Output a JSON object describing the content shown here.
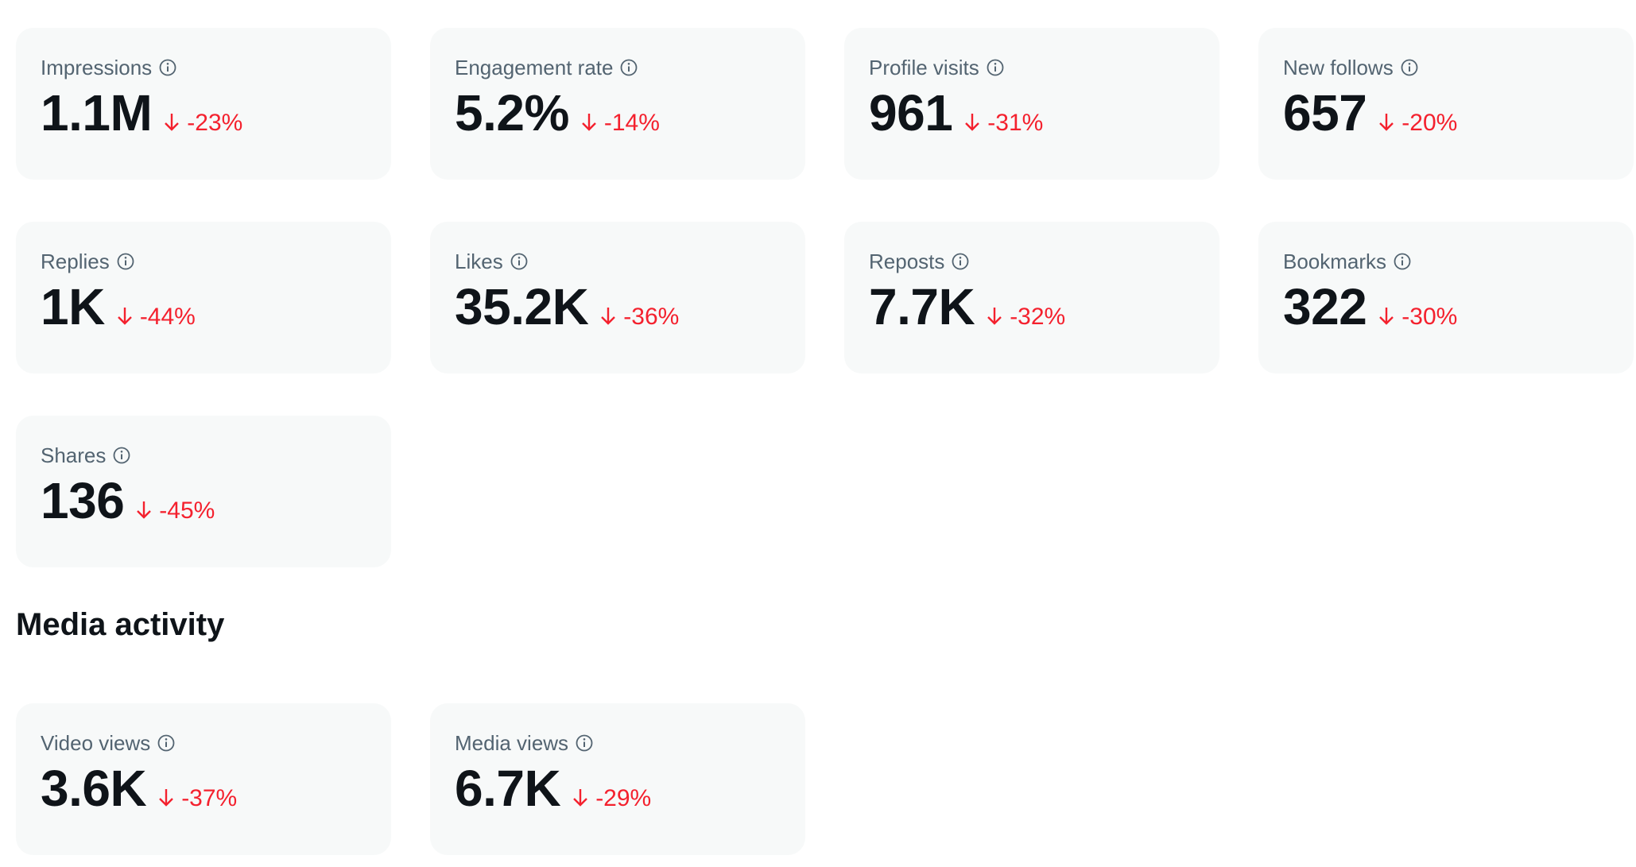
{
  "stats": [
    {
      "label": "Impressions",
      "value": "1.1M",
      "change": "-23%"
    },
    {
      "label": "Engagement rate",
      "value": "5.2%",
      "change": "-14%"
    },
    {
      "label": "Profile visits",
      "value": "961",
      "change": "-31%"
    },
    {
      "label": "New follows",
      "value": "657",
      "change": "-20%"
    },
    {
      "label": "Replies",
      "value": "1K",
      "change": "-44%"
    },
    {
      "label": "Likes",
      "value": "35.2K",
      "change": "-36%"
    },
    {
      "label": "Reposts",
      "value": "7.7K",
      "change": "-32%"
    },
    {
      "label": "Bookmarks",
      "value": "322",
      "change": "-30%"
    },
    {
      "label": "Shares",
      "value": "136",
      "change": "-45%"
    }
  ],
  "media_section": {
    "title": "Media activity",
    "stats": [
      {
        "label": "Video views",
        "value": "3.6K",
        "change": "-37%"
      },
      {
        "label": "Media views",
        "value": "6.7K",
        "change": "-29%"
      }
    ]
  },
  "icons": {
    "info": "info-circle-icon",
    "trend": "arrow-down-icon"
  },
  "colors": {
    "card_background": "#f7f9f9",
    "label_text": "#536471",
    "value_text": "#0f1419",
    "negative_change": "#f4212e"
  }
}
